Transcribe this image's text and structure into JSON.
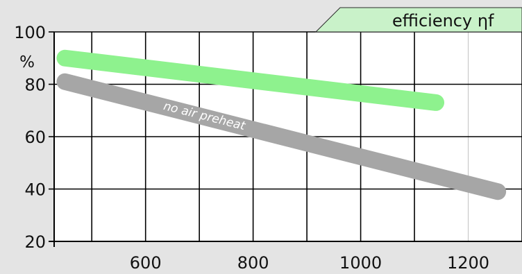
{
  "chart_data": {
    "type": "line",
    "title": "efficiency ηf",
    "xlabel": "",
    "ylabel": "%",
    "xlim": [
      430,
      1300
    ],
    "ylim": [
      20,
      100
    ],
    "x_ticks": [
      600,
      800,
      1000,
      1200
    ],
    "y_ticks": [
      20,
      40,
      60,
      80,
      100
    ],
    "grid": true,
    "series": [
      {
        "name": "",
        "color": "#8ef28e",
        "x": [
          450,
          1140
        ],
        "y": [
          90,
          73
        ]
      },
      {
        "name": "",
        "color": "#a6a6a6",
        "x": [
          450,
          1255
        ],
        "y": [
          81,
          39
        ]
      }
    ],
    "annotations": [
      {
        "text": "no air preheat",
        "series_index": 1
      }
    ],
    "colors": {
      "background": "#e4e4e4",
      "plot_background": "#ffffff",
      "grid": "#000000",
      "title_box": "#c9f2c9"
    }
  }
}
